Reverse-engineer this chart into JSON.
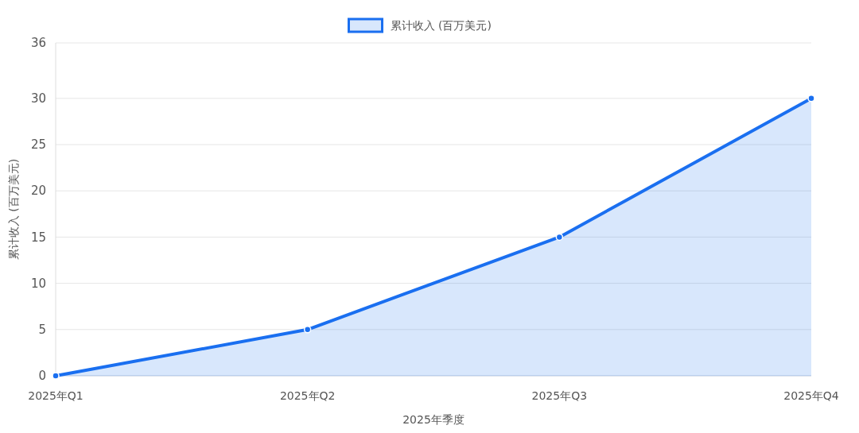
{
  "chart_data": {
    "type": "area",
    "xlabel": "2025年季度",
    "ylabel": "累计收入 (百万美元)",
    "categories": [
      "2025年Q1",
      "2025年Q2",
      "2025年Q3",
      "2025年Q4"
    ],
    "series": [
      {
        "name": "累计收入 (百万美元)",
        "color": "#1a6ff0",
        "values": [
          0,
          5,
          15,
          30
        ]
      }
    ],
    "ylim": [
      0,
      36
    ],
    "yticks": [
      0,
      5,
      10,
      15,
      20,
      25,
      30,
      36
    ],
    "grid": "y",
    "legend": "top",
    "marker": "circle",
    "line_style": "solid"
  }
}
